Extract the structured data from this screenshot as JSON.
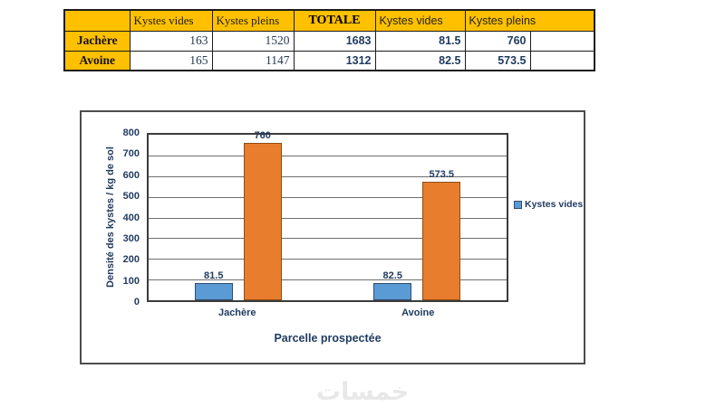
{
  "table": {
    "header": [
      "",
      "Kystes vides",
      "Kystes pleins",
      "TOTALE",
      "Kystes vides",
      "Kystes pleins"
    ],
    "rows": [
      [
        "Jachère",
        "163",
        "1520",
        "1683",
        "81.5",
        "760",
        ""
      ],
      [
        "Avoine",
        "165",
        "1147",
        "1312",
        "82.5",
        "573.5",
        ""
      ]
    ]
  },
  "chart_data": {
    "type": "bar",
    "categories": [
      "Jachère",
      "Avoine"
    ],
    "series": [
      {
        "name": "Kystes vides",
        "color": "#5B9BD5",
        "border_color": "#2E4D6B",
        "values": [
          81.5,
          82.5
        ]
      },
      {
        "name": "Kystes pleins",
        "color": "#E87D2E",
        "border_color": "#8F4D15",
        "values": [
          760,
          573.5
        ]
      }
    ],
    "labels": [
      [
        "81.5",
        "82.5"
      ],
      [
        "760",
        "573.5"
      ]
    ],
    "title": "",
    "xlabel": "Parcelle prospectée",
    "ylabel": "Densité des kystes / kg de sol",
    "ylim": [
      0,
      800
    ],
    "yticks": [
      800,
      700,
      600,
      500,
      400,
      300,
      200,
      100,
      0
    ],
    "grid": true,
    "legend": {
      "position": "right",
      "entries": [
        "Kystes vides"
      ]
    }
  },
  "watermark": {
    "text": "خمسات"
  }
}
